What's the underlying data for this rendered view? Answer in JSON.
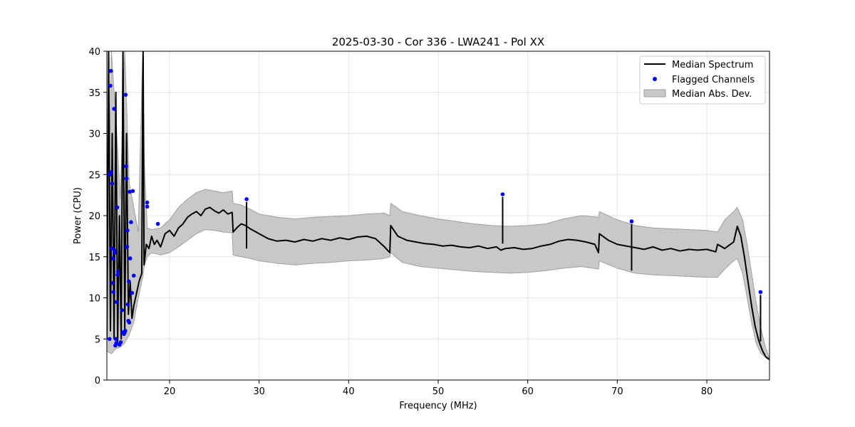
{
  "chart_data": {
    "type": "line",
    "title": "2025-03-30 - Cor 336 - LWA241 - Pol XX",
    "xlabel": "Frequency (MHz)",
    "ylabel": "Power (CPU)",
    "xlim": [
      13,
      87
    ],
    "ylim": [
      0,
      40
    ],
    "x_ticks": [
      20,
      30,
      40,
      50,
      60,
      70,
      80
    ],
    "y_ticks": [
      0,
      5,
      10,
      15,
      20,
      25,
      30,
      35,
      40
    ],
    "grid": true,
    "legend_position": "top-right",
    "legend": [
      "Median Spectrum",
      "Flagged Channels",
      "Median Abs. Dev."
    ],
    "colors": {
      "median": "#000000",
      "flagged": "#0000ff",
      "mad_fill": "#c8c8c8",
      "mad_edge": "#a0a0a0",
      "grid": "#e6e6e6"
    },
    "series": [
      {
        "name": "Median Spectrum",
        "x": [
          13.0,
          13.2,
          13.4,
          13.6,
          13.8,
          14.0,
          14.2,
          14.4,
          14.6,
          14.8,
          15.0,
          15.2,
          15.4,
          15.6,
          15.8,
          16.0,
          16.3,
          16.6,
          16.9,
          17.0,
          17.05,
          17.15,
          17.4,
          17.7,
          18.0,
          18.3,
          18.6,
          19.0,
          19.5,
          20.0,
          20.5,
          21.0,
          21.5,
          22.0,
          22.5,
          23.0,
          23.5,
          24.0,
          24.5,
          25.0,
          25.5,
          26.0,
          26.5,
          27.0,
          27.1,
          27.5,
          28.0,
          28.5,
          29.0,
          29.5,
          30.0,
          31.0,
          32.0,
          33.0,
          34.0,
          35.0,
          36.0,
          37.0,
          38.0,
          39.0,
          40.0,
          41.0,
          42.0,
          43.0,
          44.0,
          44.6,
          44.7,
          45.5,
          46.5,
          47.5,
          48.5,
          49.5,
          50.5,
          51.5,
          52.5,
          53.5,
          54.5,
          55.5,
          56.5,
          57.0,
          57.5,
          58.5,
          59.5,
          60.5,
          61.5,
          62.5,
          63.5,
          64.5,
          65.5,
          66.5,
          67.5,
          67.9,
          68.0,
          69.0,
          70.0,
          71.0,
          72.0,
          73.0,
          74.0,
          75.0,
          76.0,
          77.0,
          78.0,
          79.0,
          80.0,
          81.0,
          81.2,
          82.0,
          82.5,
          83.0,
          83.4,
          83.8,
          84.2,
          84.6,
          85.0,
          85.4,
          85.8,
          86.2,
          86.6,
          87.0
        ],
        "values": [
          5.0,
          40,
          6.0,
          30,
          5.0,
          35,
          4.5,
          20,
          5.0,
          40,
          6.0,
          30,
          8.0,
          12,
          7.5,
          9.0,
          10.5,
          12.0,
          13.0,
          35,
          40,
          14.0,
          16.5,
          16.0,
          17.5,
          16.5,
          17.0,
          16.2,
          17.8,
          18.2,
          17.5,
          18.5,
          19.0,
          19.8,
          20.2,
          20.5,
          20.0,
          20.8,
          21.0,
          20.6,
          20.3,
          20.7,
          20.2,
          20.4,
          18.0,
          18.5,
          19.0,
          18.8,
          18.4,
          18.1,
          17.8,
          17.2,
          16.9,
          17.0,
          16.8,
          17.1,
          16.9,
          17.2,
          17.0,
          17.3,
          17.1,
          17.4,
          17.5,
          17.2,
          16.2,
          15.5,
          18.8,
          17.5,
          17.0,
          16.8,
          16.6,
          16.5,
          16.3,
          16.4,
          16.2,
          16.1,
          16.3,
          16.0,
          16.2,
          15.8,
          16.0,
          16.1,
          15.9,
          16.0,
          16.3,
          16.5,
          16.9,
          17.1,
          17.0,
          16.8,
          16.5,
          15.5,
          17.8,
          17.0,
          16.5,
          16.3,
          16.1,
          15.9,
          16.2,
          15.8,
          16.0,
          15.7,
          15.9,
          15.8,
          15.9,
          15.6,
          16.5,
          16.0,
          16.4,
          16.8,
          18.7,
          17.5,
          15.0,
          12.0,
          9.0,
          6.5,
          4.8,
          3.6,
          2.8,
          2.5
        ]
      },
      {
        "name": "Median Abs. Dev.",
        "x": [
          13.0,
          13.5,
          14.0,
          14.5,
          15.0,
          15.5,
          16.0,
          16.5,
          17.0,
          17.2,
          17.5,
          18.0,
          19.0,
          20.0,
          21.0,
          22.0,
          23.0,
          24.0,
          25.0,
          26.0,
          27.0,
          27.1,
          28.0,
          29.0,
          30.0,
          32.0,
          34.0,
          36.0,
          38.0,
          40.0,
          42.0,
          44.0,
          44.6,
          44.7,
          46.0,
          48.0,
          50.0,
          52.0,
          54.0,
          56.0,
          58.0,
          60.0,
          62.0,
          64.0,
          66.0,
          67.9,
          68.0,
          70.0,
          72.0,
          74.0,
          76.0,
          78.0,
          80.0,
          81.2,
          82.0,
          83.0,
          83.4,
          84.0,
          84.5,
          85.0,
          85.5,
          86.0,
          86.5,
          87.0
        ],
        "upper": [
          7.0,
          40,
          32,
          22,
          40,
          24,
          21,
          18,
          40,
          26,
          18.5,
          18.3,
          18.5,
          19.5,
          21.0,
          22.0,
          22.8,
          23.2,
          23.0,
          22.8,
          23.0,
          21.5,
          21.3,
          20.8,
          20.2,
          19.8,
          19.6,
          19.8,
          19.9,
          20.0,
          20.2,
          20.3,
          20.0,
          21.5,
          20.5,
          20.0,
          19.6,
          19.3,
          19.0,
          18.8,
          18.7,
          18.8,
          19.0,
          19.6,
          20.0,
          19.8,
          20.5,
          19.5,
          18.8,
          18.5,
          18.4,
          18.3,
          18.2,
          18.0,
          19.5,
          20.5,
          21.0,
          19.5,
          16.5,
          13.0,
          9.5,
          6.5,
          4.2,
          2.6
        ],
        "lower": [
          3.5,
          3.2,
          3.8,
          4.0,
          4.5,
          5.5,
          7.0,
          10.0,
          12.5,
          14.0,
          15.0,
          15.5,
          15.2,
          15.5,
          16.2,
          17.0,
          17.8,
          18.3,
          18.2,
          18.0,
          17.9,
          15.2,
          15.0,
          14.8,
          14.5,
          14.2,
          14.0,
          14.2,
          14.3,
          14.5,
          14.6,
          14.8,
          15.0,
          15.5,
          14.3,
          13.8,
          13.6,
          13.4,
          13.2,
          13.1,
          13.0,
          13.1,
          13.3,
          13.6,
          13.8,
          13.5,
          14.5,
          13.6,
          13.0,
          12.8,
          12.7,
          12.6,
          12.5,
          12.5,
          13.5,
          14.5,
          14.8,
          13.0,
          10.0,
          7.0,
          4.5,
          3.3,
          2.8,
          2.4
        ]
      },
      {
        "name": "Flagged Channels",
        "x": [
          13.3,
          13.35,
          13.4,
          13.45,
          13.5,
          13.55,
          13.6,
          13.65,
          13.7,
          13.75,
          13.8,
          13.85,
          13.9,
          13.95,
          14.0,
          14.05,
          14.1,
          14.15,
          14.2,
          14.25,
          14.4,
          14.55,
          14.7,
          14.8,
          14.9,
          15.0,
          15.05,
          15.1,
          15.15,
          15.2,
          15.25,
          15.3,
          15.35,
          15.4,
          15.45,
          15.5,
          15.55,
          15.6,
          15.7,
          15.8,
          15.9,
          16.0,
          17.5,
          17.5,
          18.7,
          28.6,
          57.2,
          71.6,
          86.0
        ],
        "values": [
          5.0,
          25.0,
          35.8,
          37.6,
          25.3,
          16.0,
          23.9,
          11.8,
          14.8,
          10.7,
          33.0,
          15.8,
          15.5,
          4.2,
          5.0,
          4.5,
          9.5,
          21.0,
          12.8,
          13.2,
          4.3,
          4.6,
          8.5,
          5.8,
          5.6,
          5.8,
          6.0,
          34.7,
          26.0,
          24.5,
          16.2,
          18.2,
          9.2,
          7.2,
          12.0,
          7.0,
          22.9,
          14.8,
          19.2,
          10.6,
          23.0,
          12.7,
          21.6,
          21.1,
          19.0,
          22.0,
          22.6,
          19.3,
          10.7
        ]
      }
    ]
  }
}
